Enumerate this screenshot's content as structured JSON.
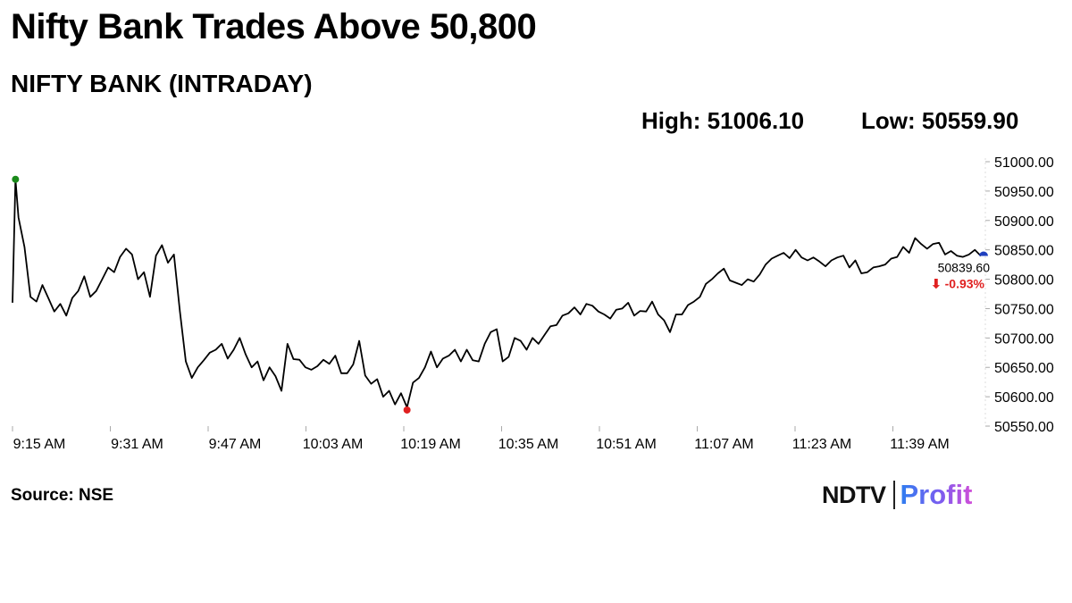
{
  "headline": "Nifty Bank Trades Above 50,800",
  "subtitle": "NIFTY BANK (INTRADAY)",
  "stats": {
    "high_label": "High: 51006.10",
    "low_label": "Low: 50559.90"
  },
  "source": "Source: NSE",
  "logo": {
    "left": "NDTV",
    "right": "Profit"
  },
  "chart_data": {
    "type": "line",
    "title": "NIFTY BANK (INTRADAY)",
    "xlabel": "",
    "ylabel": "",
    "x_ticks": [
      "9:15 AM",
      "9:31 AM",
      "9:47 AM",
      "10:03 AM",
      "10:19 AM",
      "10:35 AM",
      "10:51 AM",
      "11:07 AM",
      "11:23 AM",
      "11:39 AM"
    ],
    "y_ticks": [
      "50550.00",
      "50600.00",
      "50650.00",
      "50700.00",
      "50750.00",
      "50800.00",
      "50850.00",
      "50900.00",
      "50950.00",
      "51000.00"
    ],
    "ylim": [
      50550,
      51000
    ],
    "xlim": [
      0,
      162
    ],
    "grid": false,
    "y_axis_position": "right",
    "line_color": "#000000",
    "high_marker_color": "#1a8a1a",
    "low_marker_color": "#e02020",
    "last_marker_color": "#1f3fbf",
    "last_value": "50839.60",
    "change": "⬇ -0.93%",
    "change_color": "#e02020",
    "series": [
      {
        "x": [
          0,
          0.5,
          1,
          2,
          3,
          4,
          5,
          6,
          7,
          8,
          9,
          10,
          11,
          12,
          13,
          14,
          15,
          16,
          17,
          18,
          19,
          20,
          21,
          22,
          23,
          24,
          25,
          26,
          27,
          28,
          29,
          30,
          31,
          32,
          33,
          34,
          35,
          36,
          37,
          38,
          39,
          40,
          41,
          42,
          43,
          44,
          45,
          46,
          47,
          48,
          49,
          50,
          51,
          52,
          53,
          54,
          55,
          56,
          57,
          58,
          59,
          60,
          61,
          62,
          63,
          64,
          65,
          66,
          67,
          68,
          69,
          70,
          71,
          72,
          73,
          74,
          75,
          76,
          77,
          78,
          79,
          80,
          81,
          82,
          83,
          84,
          85,
          86,
          87,
          88,
          89,
          90,
          91,
          92,
          93,
          94,
          95,
          96,
          97,
          98,
          99,
          100,
          101,
          102,
          103,
          104,
          105,
          106,
          107,
          108,
          109,
          110,
          111,
          112,
          113,
          114,
          115,
          116,
          117,
          118,
          119,
          120,
          121,
          122,
          123,
          124,
          125,
          126,
          127,
          128,
          129,
          130,
          131,
          132,
          133,
          134,
          135,
          136,
          137,
          138,
          139,
          140,
          141,
          142,
          143,
          144,
          145,
          146,
          147,
          148,
          149,
          150,
          151,
          152,
          153,
          154,
          155,
          156,
          157,
          158,
          159,
          160,
          161,
          162
        ],
        "y": [
          50760,
          50970,
          50905,
          50855,
          50770,
          50762,
          50790,
          50768,
          50745,
          50758,
          50738,
          50768,
          50780,
          50805,
          50770,
          50780,
          50800,
          50820,
          50812,
          50838,
          50852,
          50842,
          50800,
          50812,
          50770,
          50840,
          50858,
          50828,
          50842,
          50745,
          50660,
          50632,
          50650,
          50662,
          50675,
          50680,
          50690,
          50665,
          50680,
          50700,
          50672,
          50650,
          50660,
          50628,
          50650,
          50635,
          50610,
          50690,
          50664,
          50663,
          50650,
          50646,
          50652,
          50663,
          50656,
          50670,
          50640,
          50640,
          50655,
          50695,
          50636,
          50622,
          50630,
          50600,
          50610,
          50587,
          50606,
          50582,
          50624,
          50632,
          50650,
          50677,
          50650,
          50665,
          50670,
          50680,
          50660,
          50680,
          50662,
          50660,
          50690,
          50710,
          50715,
          50660,
          50668,
          50700,
          50695,
          50680,
          50700,
          50690,
          50705,
          50720,
          50722,
          50738,
          50742,
          50752,
          50740,
          50758,
          50755,
          50745,
          50740,
          50733,
          50748,
          50750,
          50760,
          50738,
          50746,
          50745,
          50762,
          50740,
          50730,
          50710,
          50740,
          50740,
          50756,
          50762,
          50770,
          50792,
          50800,
          50810,
          50818,
          50798,
          50794,
          50790,
          50800,
          50796,
          50808,
          50825,
          50835,
          50840,
          50845,
          50836,
          50850,
          50837,
          50832,
          50837,
          50830,
          50822,
          50832,
          50837,
          50840,
          50820,
          50832,
          50810,
          50812,
          50820,
          50822,
          50825,
          50835,
          50838,
          50855,
          50845,
          50870,
          50860,
          50852,
          50860,
          50862,
          50842,
          50848,
          50840,
          50838,
          50842,
          50850,
          50839.6
        ]
      }
    ]
  }
}
